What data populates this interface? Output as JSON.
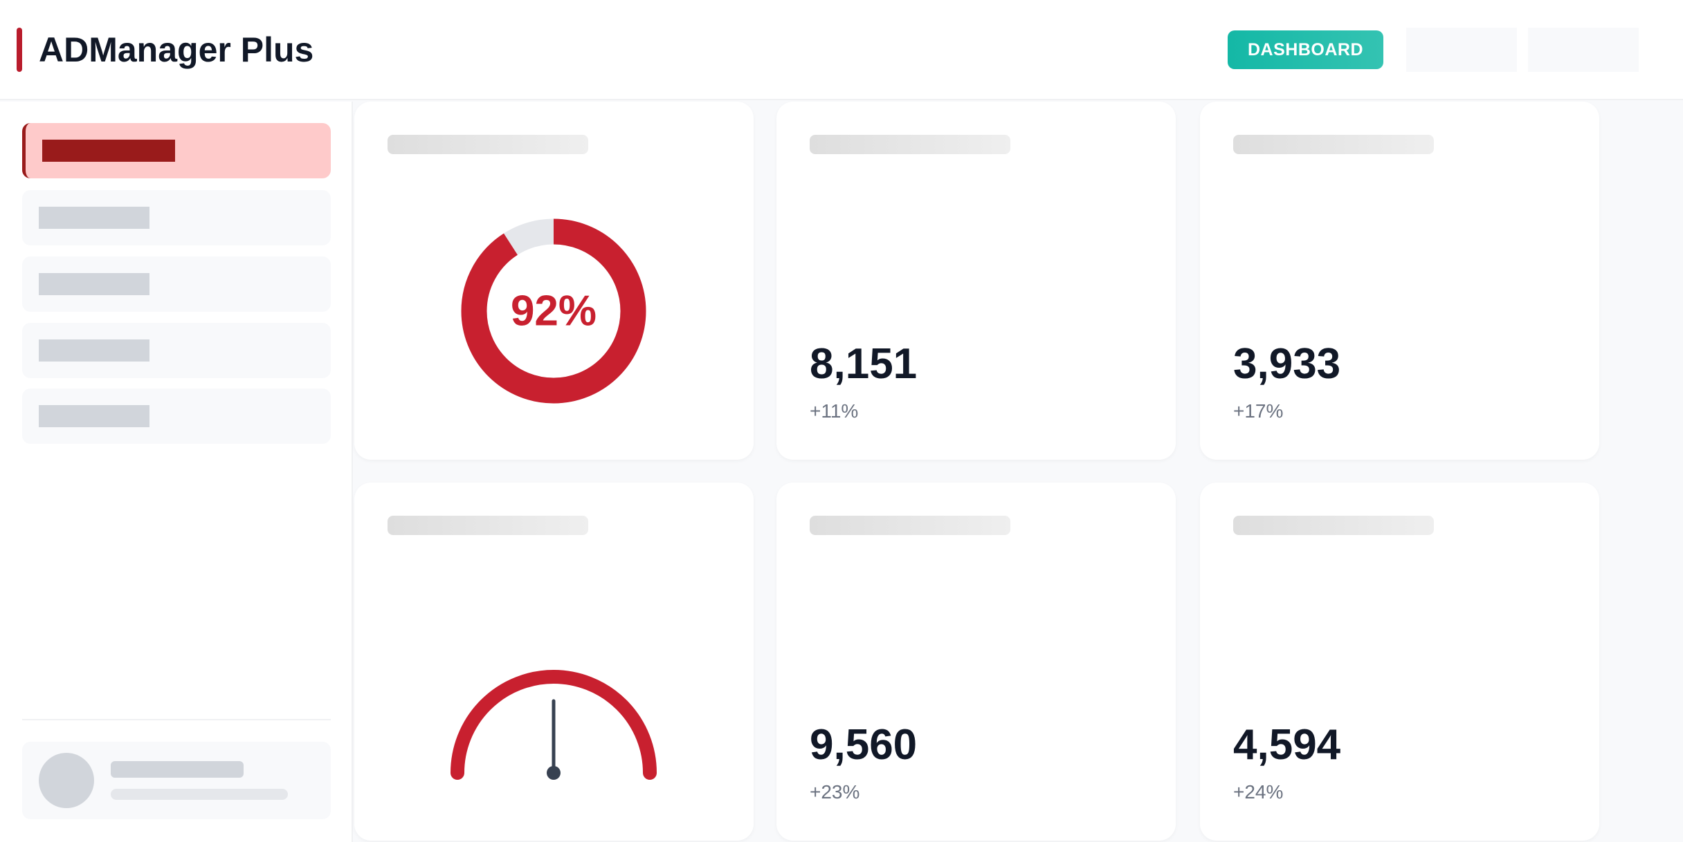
{
  "header": {
    "title": "ADManager Plus",
    "dashboard_button": "DASHBOARD"
  },
  "sidebar": {
    "items": [
      {
        "active": true
      },
      {
        "active": false
      },
      {
        "active": false
      },
      {
        "active": false
      },
      {
        "active": false
      }
    ]
  },
  "donut": {
    "value": 92,
    "label": "92%",
    "color": "#c8202f",
    "track_color": "#e5e7eb"
  },
  "gauge": {
    "color": "#c8202f",
    "needle_color": "#374151",
    "value_fraction": 0.5
  },
  "metrics": [
    {
      "value": "8,151",
      "change": "+11%"
    },
    {
      "value": "3,933",
      "change": "+17%"
    },
    {
      "value": "9,560",
      "change": "+23%"
    },
    {
      "value": "4,594",
      "change": "+24%"
    }
  ],
  "colors": {
    "accent": "#b91c2c",
    "teal": "#14b8a6",
    "active_bg": "#fecaca",
    "active_text": "#991b1b"
  }
}
